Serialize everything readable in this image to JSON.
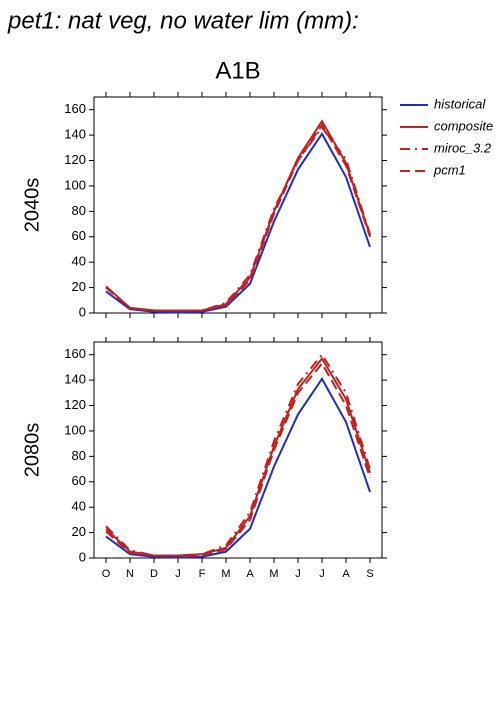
{
  "title": "pet1: nat veg, no water lim (mm):",
  "subtitle": "A1B",
  "chart_data": [
    {
      "type": "line",
      "ylabel": "2040s",
      "ylim": [
        0,
        170
      ],
      "yticks": [
        0,
        20,
        40,
        60,
        80,
        100,
        120,
        140,
        160
      ],
      "legend": "right",
      "series": [
        {
          "name": "historical",
          "color": "#1f2fbf",
          "dash": "solid",
          "values": [
            17,
            3,
            1,
            0.5,
            1,
            5,
            23,
            72,
            113,
            141,
            107,
            52
          ]
        },
        {
          "name": "composite",
          "color": "#c42020",
          "dash": "solid",
          "values": [
            21,
            4,
            2,
            2,
            2,
            7,
            28,
            80,
            122,
            151,
            118,
            61
          ]
        },
        {
          "name": "miroc_3.2",
          "color": "#c42020",
          "dash": "dashdot",
          "values": [
            20,
            4,
            2,
            2,
            2,
            8,
            30,
            82,
            120,
            146,
            121,
            62
          ]
        },
        {
          "name": "pcm1",
          "color": "#c42020",
          "dash": "dashed",
          "values": [
            20,
            4,
            2,
            2,
            2,
            6,
            26,
            78,
            120,
            148,
            116,
            60
          ]
        }
      ]
    },
    {
      "type": "line",
      "ylabel": "2080s",
      "ylim": [
        0,
        170
      ],
      "yticks": [
        0,
        20,
        40,
        60,
        80,
        100,
        120,
        140,
        160
      ],
      "categories": [
        "O",
        "N",
        "D",
        "J",
        "F",
        "M",
        "A",
        "M",
        "J",
        "J",
        "A",
        "S"
      ],
      "series": [
        {
          "color": "#1f2fbf",
          "dash": "solid",
          "values": [
            17,
            3,
            1,
            0.5,
            1,
            5,
            23,
            72,
            113,
            141,
            107,
            52
          ]
        },
        {
          "color": "#c42020",
          "dash": "solid",
          "values": [
            23,
            5,
            2,
            2,
            3,
            8,
            33,
            88,
            133,
            157,
            125,
            67
          ]
        },
        {
          "color": "#c42020",
          "dash": "dashdot",
          "values": [
            25,
            6,
            2,
            2,
            3,
            10,
            36,
            92,
            137,
            160,
            130,
            70
          ]
        },
        {
          "color": "#c42020",
          "dash": "dashed",
          "values": [
            21,
            4,
            2,
            2,
            2,
            7,
            30,
            85,
            130,
            153,
            120,
            63
          ]
        }
      ]
    }
  ]
}
